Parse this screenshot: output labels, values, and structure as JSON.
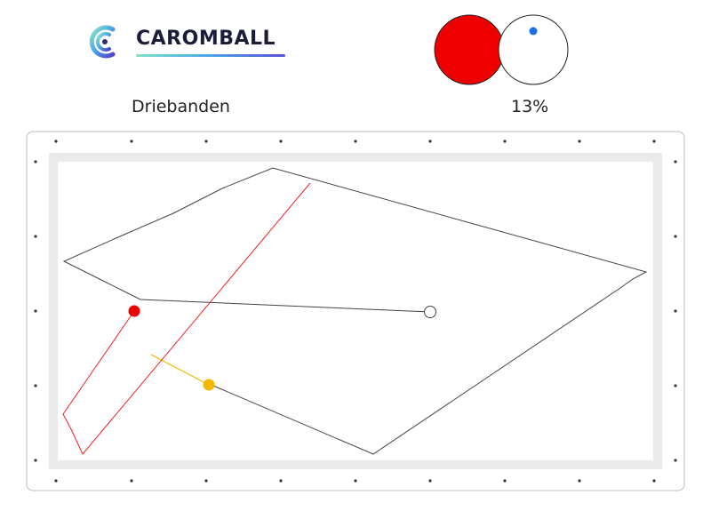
{
  "brand": {
    "name": "CAROMBALL"
  },
  "game": {
    "type_label": "Driebanden"
  },
  "hit_indicator": {
    "percentage": "13%",
    "hit_fraction": 0.13
  },
  "colors": {
    "red_ball": "#ee0000",
    "white_ball": "#ffffff",
    "yellow_ball": "#f5b800",
    "cue_ball_path": "#444444",
    "red_ball_path": "#ee2222",
    "yellow_ball_path": "#f5b800",
    "rail": "#ebebeb",
    "contact_dot": "#1a6fe0"
  }
}
